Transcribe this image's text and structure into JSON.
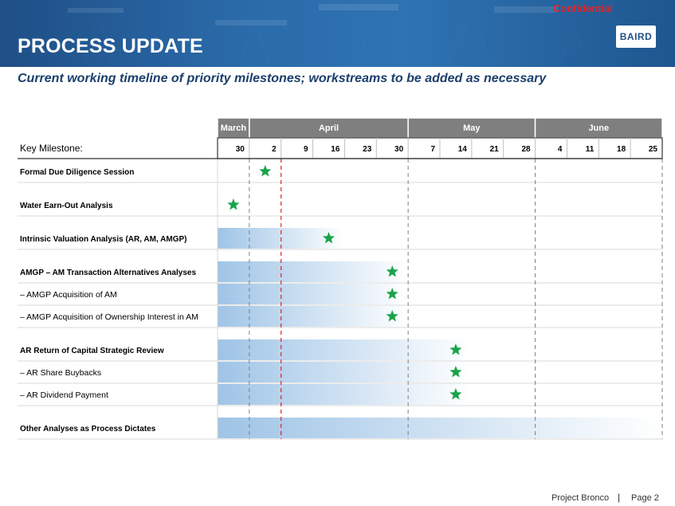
{
  "header": {
    "title": "PROCESS UPDATE",
    "confidential": "Confidential",
    "logo": "BAIRD"
  },
  "subtitle": "Current working timeline of priority milestones; workstreams to be added as necessary",
  "colors": {
    "header_blue": "#2a6aa9",
    "month_header": "#7f7f7f",
    "bar_start": "#9fc4e6",
    "bar_end": "#ffffff",
    "star": "#1aa34a",
    "deadline_line": "#e02424",
    "month_divider": "#808080"
  },
  "timeline": {
    "key_label": "Key Milestone:",
    "months": [
      {
        "label": "March"
      },
      {
        "label": "April"
      },
      {
        "label": "May"
      },
      {
        "label": "June"
      }
    ],
    "weeks": [
      "30",
      "2",
      "9",
      "16",
      "23",
      "30",
      "7",
      "14",
      "21",
      "28",
      "4",
      "11",
      "18",
      "25"
    ],
    "month_week_counts": [
      1,
      5,
      4,
      4
    ],
    "rows": [
      {
        "label": "Formal Due Diligence Session",
        "bold": true,
        "gap_before": false,
        "bar_end_week": null,
        "star_week": 1
      },
      {
        "label": "Water Earn-Out Analysis",
        "bold": true,
        "gap_before": true,
        "bar_end_week": null,
        "star_week": 0
      },
      {
        "label": "Intrinsic Valuation Analysis (AR, AM, AMGP)",
        "bold": true,
        "gap_before": true,
        "bar_end_week": 3,
        "star_week": 3
      },
      {
        "label": "AMGP – AM Transaction Alternatives Analyses",
        "bold": true,
        "gap_before": true,
        "bar_end_week": 5,
        "star_week": 5
      },
      {
        "label": "–   AMGP Acquisition of AM",
        "bold": false,
        "gap_before": false,
        "bar_end_week": 5,
        "star_week": 5
      },
      {
        "label": "–   AMGP Acquisition of Ownership Interest in AM",
        "bold": false,
        "gap_before": false,
        "bar_end_week": 5,
        "star_week": 5
      },
      {
        "label": "AR Return of Capital Strategic Review",
        "bold": true,
        "gap_before": true,
        "bar_end_week": 7,
        "star_week": 7
      },
      {
        "label": "–   AR Share Buybacks",
        "bold": false,
        "gap_before": false,
        "bar_end_week": 7,
        "star_week": 7
      },
      {
        "label": "–   AR Dividend Payment",
        "bold": false,
        "gap_before": false,
        "bar_end_week": 7,
        "star_week": 7
      },
      {
        "label": "Other Analyses as Process Dictates",
        "bold": true,
        "gap_before": true,
        "bar_end_week": 13,
        "star_week": null
      }
    ],
    "deadline_after_week": 1
  },
  "footer": {
    "project": "Project Bronco",
    "separator": "|",
    "page": "Page 2"
  }
}
